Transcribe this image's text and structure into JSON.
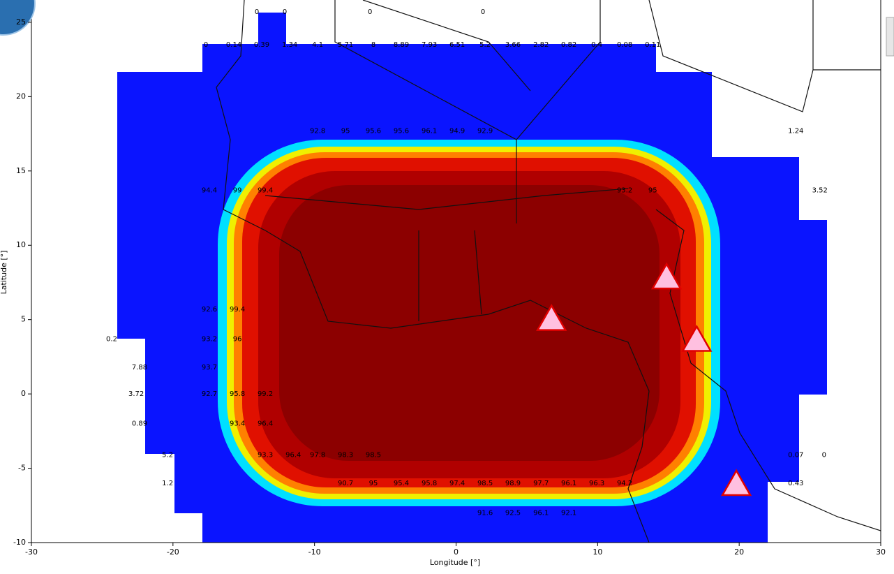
{
  "chart_data": {
    "type": "heatmap",
    "x_label": "Longitude [°]",
    "y_label": "Latitude [°]",
    "xlim": [
      -30,
      30
    ],
    "ylim": [
      -10,
      26.5
    ],
    "xticks": [
      -30,
      -20,
      -10,
      0,
      10,
      20,
      30
    ],
    "yticks": [
      -10,
      -5,
      0,
      5,
      10,
      15,
      20,
      25
    ],
    "rows": [
      {
        "y": 25.7,
        "x": [
          -14.07,
          -12.1,
          -6.08,
          1.9
        ],
        "values": [
          0,
          0,
          0,
          0
        ]
      },
      {
        "y": 23.5,
        "x": [
          -17.67,
          -15.7,
          -13.73,
          -11.75,
          -9.78,
          -7.81,
          -5.84,
          -3.87,
          -1.89,
          0.08,
          2.05,
          4.02,
          6.0,
          7.97,
          9.94,
          11.91,
          13.89
        ],
        "values": [
          0,
          0.14,
          0.39,
          1.34,
          4.1,
          5.71,
          8,
          8.89,
          7.93,
          6.51,
          5.2,
          3.66,
          2.82,
          0.82,
          0.4,
          0.08,
          0.11
        ]
      },
      {
        "y": 17.7,
        "x": [
          -9.78,
          -7.81,
          -5.84,
          -3.87,
          -1.89,
          0.08,
          2.05,
          24.0
        ],
        "values": [
          92.8,
          95,
          95.6,
          95.6,
          96.1,
          94.9,
          92.9,
          1.24
        ]
      },
      {
        "y": 13.7,
        "x": [
          -17.43,
          -15.45,
          -13.48,
          11.91,
          13.89,
          25.7
        ],
        "values": [
          94.4,
          99,
          99.4,
          93.2,
          95,
          3.52
        ]
      },
      {
        "y": 5.7,
        "x": [
          -17.43,
          -15.45
        ],
        "values": [
          92.6,
          99.4
        ]
      },
      {
        "y": 3.7,
        "x": [
          -24.33,
          -17.43,
          -15.45
        ],
        "values": [
          0.2,
          93.2,
          96
        ]
      },
      {
        "y": 1.8,
        "x": [
          -22.36,
          -17.43
        ],
        "values": [
          7.88,
          93.7
        ]
      },
      {
        "y": 0,
        "x": [
          -22.6,
          -17.43,
          -15.45,
          -13.48
        ],
        "values": [
          3.72,
          92.7,
          95.8,
          99.2
        ]
      },
      {
        "y": -2,
        "x": [
          -22.36,
          -15.45,
          -13.48
        ],
        "values": [
          0.89,
          93.4,
          96.4
        ]
      },
      {
        "y": -4.1,
        "x": [
          -20.38,
          -13.48,
          -11.5,
          -9.78,
          -7.81,
          -5.84,
          24.0,
          26.0
        ],
        "values": [
          5.2,
          93.3,
          96.4,
          97.8,
          98.3,
          98.5,
          0.07,
          0
        ]
      },
      {
        "y": -6,
        "x": [
          -20.38,
          -7.81,
          -5.84,
          -3.87,
          -1.89,
          0.08,
          2.05,
          4.02,
          6.0,
          7.97,
          9.94,
          11.91,
          24.0
        ],
        "values": [
          1.2,
          90.7,
          95,
          95.4,
          95.8,
          97.4,
          98.5,
          98.9,
          97.7,
          96.1,
          96.3,
          94.2,
          0.43
        ]
      },
      {
        "y": -8,
        "x": [
          2.05,
          4.02,
          6.0,
          7.97
        ],
        "values": [
          91.6,
          92.5,
          96.1,
          92.1
        ]
      }
    ],
    "markers": {
      "x": [
        6.74,
        14.87,
        17.0,
        19.8
      ],
      "y": [
        5.0,
        7.8,
        3.6,
        -6.1
      ],
      "color": "#ffc0e0"
    }
  }
}
